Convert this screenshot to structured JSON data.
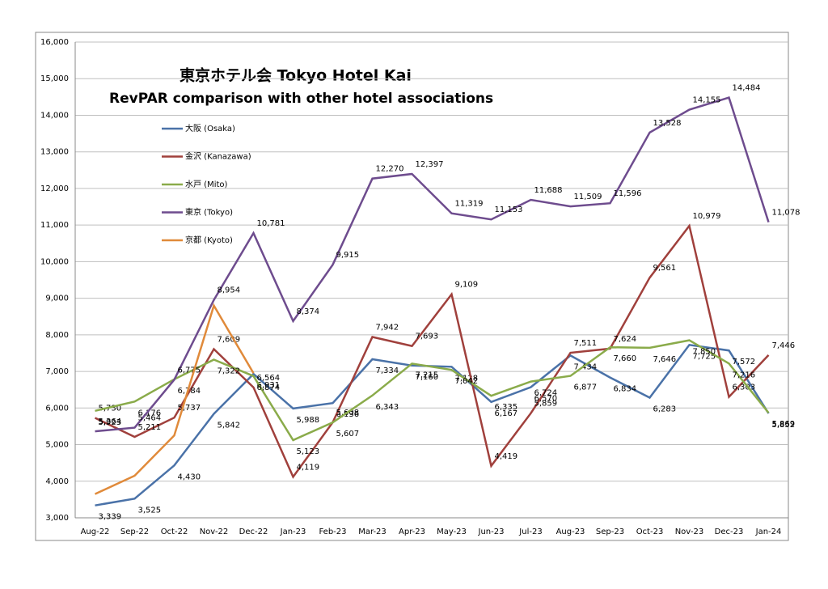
{
  "chart_data": {
    "type": "line",
    "title": "東京ホテル会  Tokyo Hotel Kai",
    "subtitle": "RevPAR comparison with other hotel associations",
    "categories": [
      "Aug-22",
      "Sep-22",
      "Oct-22",
      "Nov-22",
      "Dec-22",
      "Jan-23",
      "Feb-23",
      "Mar-23",
      "Apr-23",
      "May-23",
      "Jun-23",
      "Jul-23",
      "Aug-23",
      "Sep-23",
      "Oct-23",
      "Nov-23",
      "Dec-23",
      "Jan-24"
    ],
    "ylim": [
      3000,
      16000
    ],
    "yticks": [
      {
        "value": 3000,
        "label": "3,000"
      },
      {
        "value": 4000,
        "label": "4,000"
      },
      {
        "value": 5000,
        "label": "5,000"
      },
      {
        "value": 6000,
        "label": "6,000"
      },
      {
        "value": 7000,
        "label": "7,000"
      },
      {
        "value": 8000,
        "label": "8,000"
      },
      {
        "value": 9000,
        "label": "9,000"
      },
      {
        "value": 10000,
        "label": "10,000"
      },
      {
        "value": 11000,
        "label": "11,000"
      },
      {
        "value": 12000,
        "label": "12,000"
      },
      {
        "value": 13000,
        "label": "13,000"
      },
      {
        "value": 14000,
        "label": "14,000"
      },
      {
        "value": 15000,
        "label": "15,000"
      },
      {
        "value": 16000,
        "label": "16,000"
      }
    ],
    "grid": true,
    "series": [
      {
        "name": "大阪 (Osaka)",
        "color": "#4a72a8",
        "values": [
          3339,
          3525,
          4430,
          5842,
          6931,
          5988,
          6136,
          7334,
          7160,
          7128,
          6167,
          6570,
          7434,
          6834,
          6283,
          7725,
          7572,
          5852
        ],
        "value_labels": [
          "3,339",
          "3,525",
          "4,430",
          "5,842",
          "6,931",
          "5,988",
          "6,136",
          "7,334",
          "7,160",
          "7,128",
          "6,167",
          "6,570",
          "7,434",
          "6,834",
          "6,283",
          "7,725",
          "7,572",
          "5,852"
        ]
      },
      {
        "name": "金沢 (Kanazawa)",
        "color": "#a0403c",
        "values": [
          5730,
          5211,
          5737,
          7609,
          6564,
          4119,
          5608,
          7942,
          7693,
          9109,
          4419,
          5859,
          7511,
          7624,
          9561,
          10979,
          6303,
          7446
        ],
        "value_labels": [
          "5,730",
          "5,211",
          "5,737",
          "7,609",
          "6,564",
          "4,119",
          "5,608",
          "7,942",
          "7,693",
          "9,109",
          "4,419",
          "5,859",
          "7,511",
          "7,624",
          "9,561",
          "10,979",
          "6,303",
          "7,446"
        ]
      },
      {
        "name": "水戸 (Mito)",
        "color": "#8aab4a",
        "values": [
          5923,
          6176,
          6784,
          7322,
          6874,
          5123,
          5607,
          6343,
          7215,
          7042,
          6335,
          6724,
          6877,
          7660,
          7646,
          7850,
          7216,
          5869
        ],
        "value_labels": [
          "5,923",
          "6,176",
          "6,784",
          "7,322",
          "6,874",
          "5,123",
          "5,607",
          "6,343",
          "7,215",
          "7,042",
          "6,335",
          "6,724",
          "6,877",
          "7,660",
          "7,646",
          "7,850",
          "7,216",
          "5,869"
        ]
      },
      {
        "name": "東京 (Tokyo)",
        "color": "#6e4c8e",
        "values": [
          5364,
          5464,
          6775,
          8954,
          10781,
          8374,
          9915,
          12270,
          12397,
          11319,
          11153,
          11688,
          11509,
          11596,
          13528,
          14155,
          14484,
          11078
        ],
        "value_labels": [
          "5,364",
          "5,464",
          "6,775",
          "8,954",
          "10,781",
          "8,374",
          "9,915",
          "12,270",
          "12,397",
          "11,319",
          "11,153",
          "11,688",
          "11,509",
          "11,596",
          "13,528",
          "14,155",
          "14,484",
          "11,078"
        ]
      },
      {
        "name": "京都 (Kyoto)",
        "color": "#e08a3a",
        "values": [
          3650,
          4150,
          5250,
          8800,
          6950,
          null,
          null,
          null,
          null,
          null,
          null,
          null,
          null,
          null,
          null,
          null,
          null,
          null
        ]
      }
    ]
  }
}
